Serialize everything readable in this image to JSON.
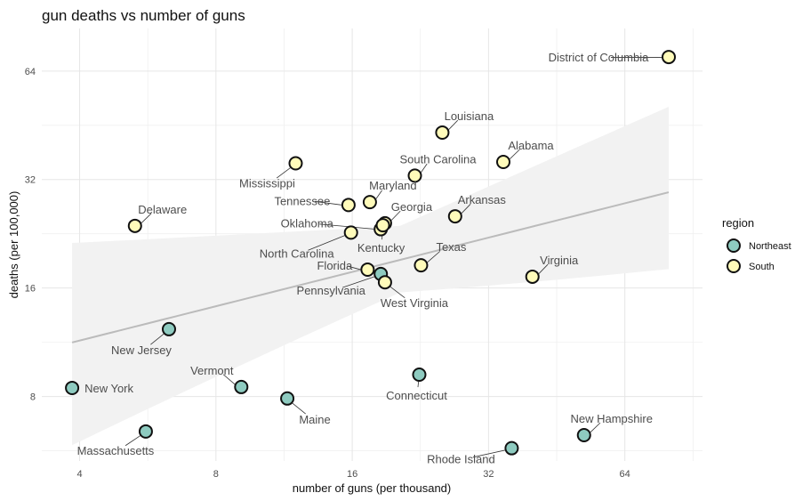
{
  "chart_data": {
    "type": "scatter",
    "title": "gun deaths vs number of guns",
    "xlabel": "number of guns (per thousand)",
    "ylabel": "deaths (per 100,000)",
    "x_scale": "log2",
    "y_scale": "log2",
    "xlim": [
      3.3,
      95
    ],
    "ylim": [
      5.3,
      84
    ],
    "x_ticks": [
      4,
      8,
      16,
      32,
      64
    ],
    "x_tick_labels": [
      "4",
      "8",
      "16",
      "32",
      "64"
    ],
    "y_ticks": [
      8,
      16,
      32,
      64
    ],
    "y_tick_labels": [
      "8",
      "16",
      "32",
      "64"
    ],
    "grid": true,
    "legend": {
      "title": "region",
      "position": "right",
      "entries": [
        {
          "label": "Northeast",
          "color": "#8ecbc0"
        },
        {
          "label": "South",
          "color": "#fffbba"
        }
      ]
    },
    "trend": {
      "x": [
        3.85,
        80
      ],
      "y": [
        11.3,
        29.5
      ],
      "ci_lower": [
        5.9,
        17.0
      ],
      "ci_upper": [
        21.2,
        54.5
      ],
      "line_color": "#bbbbbb",
      "band_color": "#f2f2f2"
    },
    "series": [
      {
        "name": "Northeast",
        "color": "#8ecbc0",
        "points": [
          {
            "label": "New York",
            "x": 3.85,
            "y": 8.45
          },
          {
            "label": "Massachusetts",
            "x": 5.6,
            "y": 6.4
          },
          {
            "label": "New Jersey",
            "x": 6.3,
            "y": 12.3
          },
          {
            "label": "Vermont",
            "x": 9.1,
            "y": 8.5
          },
          {
            "label": "Maine",
            "x": 11.5,
            "y": 7.9
          },
          {
            "label": "Pennsylvania",
            "x": 18.5,
            "y": 17.5
          },
          {
            "label": "Connecticut",
            "x": 22.5,
            "y": 9.2
          },
          {
            "label": "Rhode Island",
            "x": 36.0,
            "y": 5.75
          },
          {
            "label": "New Hampshire",
            "x": 52.0,
            "y": 6.25
          }
        ]
      },
      {
        "name": "South",
        "color": "#fffbba",
        "points": [
          {
            "label": "Delaware",
            "x": 5.3,
            "y": 23.8
          },
          {
            "label": "Mississippi",
            "x": 12.0,
            "y": 35.5
          },
          {
            "label": "Tennessee",
            "x": 15.7,
            "y": 27.2
          },
          {
            "label": "Maryland",
            "x": 17.5,
            "y": 27.7
          },
          {
            "label": "North Carolina",
            "x": 15.9,
            "y": 22.8
          },
          {
            "label": "Oklahoma",
            "x": 18.5,
            "y": 23.3
          },
          {
            "label": "Georgia",
            "x": 18.9,
            "y": 24.2
          },
          {
            "label": "Kentucky",
            "x": 18.7,
            "y": 23.9
          },
          {
            "label": "Florida",
            "x": 17.3,
            "y": 18.0
          },
          {
            "label": "West Virginia",
            "x": 18.9,
            "y": 16.6
          },
          {
            "label": "South Carolina",
            "x": 22.0,
            "y": 32.8
          },
          {
            "label": "Louisiana",
            "x": 25.3,
            "y": 43.2
          },
          {
            "label": "Texas",
            "x": 22.7,
            "y": 18.5
          },
          {
            "label": "Arkansas",
            "x": 27.0,
            "y": 25.3
          },
          {
            "label": "Alabama",
            "x": 34.5,
            "y": 35.8
          },
          {
            "label": "Virginia",
            "x": 40.0,
            "y": 17.2
          },
          {
            "label": "District of Columbia",
            "x": 80.0,
            "y": 70.0
          }
        ]
      }
    ]
  }
}
